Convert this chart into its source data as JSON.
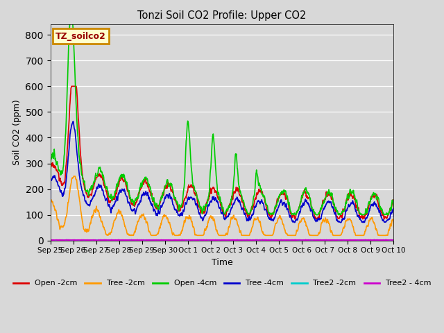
{
  "title": "Tonzi Soil CO2 Profile: Upper CO2",
  "ylabel": "Soil CO2 (ppm)",
  "xlabel": "Time",
  "annotation_text": "TZ_soilco2",
  "annotation_bg": "#ffffcc",
  "annotation_border": "#cc8800",
  "ylim": [
    0,
    840
  ],
  "yticks": [
    0,
    100,
    200,
    300,
    400,
    500,
    600,
    700,
    800
  ],
  "xlim": [
    0,
    15
  ],
  "bg_color": "#d8d8d8",
  "series": {
    "Open -2cm": {
      "color": "#dd0000",
      "lw": 1.2
    },
    "Tree -2cm": {
      "color": "#ff9900",
      "lw": 1.2
    },
    "Open -4cm": {
      "color": "#00cc00",
      "lw": 1.2
    },
    "Tree -4cm": {
      "color": "#0000cc",
      "lw": 1.2
    },
    "Tree2 -2cm": {
      "color": "#00cccc",
      "lw": 1.2
    },
    "Tree2 - 4cm": {
      "color": "#cc00cc",
      "lw": 1.2
    }
  },
  "tick_labels": [
    "Sep 25",
    "Sep 26",
    "Sep 27",
    "Sep 28",
    "Sep 29",
    "Sep 30",
    "Oct 1",
    "Oct 2",
    "Oct 3",
    "Oct 4",
    "Oct 5",
    "Oct 6",
    "Oct 7",
    "Oct 8",
    "Oct 9",
    "Oct 10"
  ]
}
